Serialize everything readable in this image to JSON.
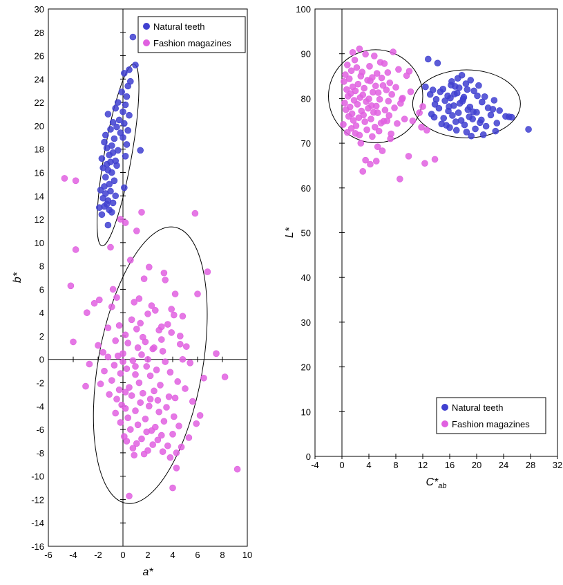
{
  "chart_data": [
    {
      "type": "scatter",
      "title": "",
      "xlabel": "a*",
      "ylabel": "b*",
      "xlim": [
        -6,
        10
      ],
      "ylim": [
        -16,
        30
      ],
      "xticks": [
        -6,
        -4,
        -2,
        0,
        2,
        4,
        6,
        8,
        10
      ],
      "yticks": [
        -16,
        -14,
        -12,
        -10,
        -8,
        -6,
        -4,
        -2,
        0,
        2,
        4,
        6,
        8,
        10,
        12,
        14,
        16,
        18,
        20,
        22,
        24,
        26,
        28,
        30
      ],
      "grid": false,
      "legend": {
        "position": "top-right"
      },
      "ellipses": [
        {
          "series": "Natural teeth",
          "cx": -0.4,
          "cy": 17.5,
          "rx": 1.1,
          "ry": 7.9,
          "angle_deg": 10
        },
        {
          "series": "Fashion magazines",
          "cx": 2.2,
          "cy": -0.5,
          "rx": 4.2,
          "ry": 12.0,
          "angle_deg": 10
        }
      ],
      "series": [
        {
          "name": "Natural teeth",
          "color": "#4040d0",
          "x": [
            0.8,
            0.5,
            1.0,
            0.1,
            0.6,
            0.4,
            -0.1,
            0.3,
            -0.4,
            0.2,
            -0.6,
            0.0,
            -1.2,
            0.5,
            -0.3,
            -0.8,
            0.1,
            -0.5,
            -1.0,
            0.4,
            -0.2,
            -1.4,
            0.0,
            -0.7,
            -1.5,
            0.3,
            -0.9,
            1.4,
            -1.3,
            -0.4,
            -0.8,
            -1.1,
            0.2,
            -1.7,
            -0.6,
            -1.0,
            -1.3,
            -0.5,
            -1.6,
            -1.2,
            -0.9,
            -1.4,
            -0.7,
            -1.1,
            -1.5,
            0.1,
            -1.8,
            -1.0,
            -1.4,
            -0.6,
            -1.6,
            -1.2,
            -0.8,
            -1.3,
            -1.5,
            -1.9,
            -1.1,
            -0.9,
            -1.7,
            -1.2
          ],
          "y": [
            27.6,
            24.8,
            25.2,
            24.5,
            23.8,
            23.4,
            22.9,
            22.5,
            22.0,
            21.8,
            21.5,
            21.2,
            21.0,
            20.9,
            20.5,
            20.3,
            20.2,
            19.9,
            19.7,
            19.6,
            19.4,
            19.2,
            19.0,
            18.9,
            18.6,
            18.4,
            18.3,
            17.9,
            18.1,
            17.9,
            17.7,
            17.5,
            17.4,
            17.2,
            17.0,
            16.9,
            16.7,
            16.6,
            16.4,
            16.2,
            16.0,
            15.6,
            15.3,
            15.0,
            14.8,
            14.7,
            14.5,
            14.4,
            14.2,
            14.0,
            13.8,
            13.6,
            13.4,
            13.3,
            13.1,
            13.0,
            12.8,
            12.6,
            12.4,
            11.5
          ]
        },
        {
          "name": "Fashion magazines",
          "color": "#e060e0",
          "x": [
            -4.7,
            -3.8,
            5.8,
            1.5,
            -0.2,
            0.2,
            -3.8,
            -1.0,
            1.1,
            6.8,
            0.6,
            2.1,
            -4.2,
            3.4,
            -0.8,
            1.7,
            3.3,
            4.2,
            -1.9,
            -0.5,
            2.3,
            -2.3,
            4.8,
            -0.9,
            1.3,
            -2.9,
            0.9,
            2.6,
            4.1,
            0.7,
            -0.3,
            3.6,
            1.1,
            3.9,
            0.2,
            -1.2,
            2.9,
            1.6,
            -0.6,
            4.6,
            0.4,
            -2.0,
            1.8,
            3.1,
            -4.0,
            5.1,
            1.2,
            -1.6,
            2.4,
            0.0,
            3.2,
            -0.4,
            1.5,
            -1.2,
            2.0,
            4.8,
            -2.7,
            0.8,
            3.4,
            -0.7,
            1.9,
            5.4,
            0.3,
            2.7,
            -1.5,
            -0.2,
            3.8,
            1.0,
            6.5,
            8.2,
            -3.0,
            2.2,
            -0.9,
            4.4,
            1.3,
            -1.8,
            0.5,
            3.0,
            -0.3,
            2.5,
            5.0,
            1.6,
            -1.1,
            0.7,
            3.7,
            -0.5,
            2.8,
            4.2,
            1.4,
            -0.1,
            5.6,
            2.1,
            0.2,
            3.5,
            1.0,
            -0.6,
            2.9,
            6.2,
            0.4,
            4.1,
            1.8,
            -0.2,
            3.3,
            5.9,
            1.2,
            2.6,
            0.6,
            4.5,
            1.9,
            2.3,
            4.0,
            0.1,
            3.1,
            1.5,
            0.3,
            2.8,
            5.3,
            1.1,
            3.6,
            2.4,
            0.8,
            4.7,
            2.0,
            3.2,
            1.7,
            4.3,
            0.9,
            3.8,
            4.3,
            4.0,
            0.5,
            9.2,
            7.5,
            2.5,
            0.0,
            1.0,
            3.1,
            2.0,
            6.0,
            1.4,
            3.9,
            0.2,
            2.2,
            4.6
          ],
          "y": [
            15.5,
            15.3,
            12.5,
            12.6,
            12.0,
            11.7,
            9.4,
            9.6,
            11.0,
            7.5,
            8.5,
            7.9,
            6.3,
            6.8,
            6.0,
            6.9,
            7.4,
            5.6,
            5.1,
            5.3,
            4.6,
            4.8,
            3.7,
            4.5,
            5.2,
            4.0,
            4.9,
            4.2,
            3.8,
            3.4,
            2.9,
            3.0,
            2.6,
            2.3,
            2.1,
            2.7,
            2.5,
            1.9,
            1.6,
            2.0,
            1.4,
            1.2,
            1.5,
            1.7,
            1.5,
            1.1,
            1.0,
            0.6,
            0.9,
            0.5,
            0.7,
            0.3,
            0.4,
            0.2,
            0.0,
            0.0,
            -0.4,
            -0.1,
            -0.2,
            -0.5,
            -0.6,
            -0.3,
            -0.8,
            -0.9,
            -1.0,
            -1.2,
            -1.1,
            -1.3,
            -1.6,
            -1.5,
            -2.3,
            -1.4,
            -1.8,
            -1.9,
            -2.0,
            -2.1,
            -2.4,
            -2.2,
            -2.6,
            -2.7,
            -2.5,
            -2.9,
            -3.0,
            -3.1,
            -3.2,
            -3.4,
            -3.5,
            -3.3,
            -3.7,
            -3.9,
            -3.6,
            -4.0,
            -4.2,
            -4.1,
            -4.4,
            -4.6,
            -4.5,
            -4.8,
            -5.0,
            -4.9,
            -5.1,
            -5.4,
            -5.3,
            -5.5,
            -5.6,
            -5.8,
            -6.0,
            -5.7,
            -6.2,
            -6.1,
            -6.4,
            -6.6,
            -6.5,
            -6.8,
            -7.0,
            -6.9,
            -6.7,
            -7.2,
            -7.4,
            -7.3,
            -7.6,
            -7.5,
            -7.8,
            -7.9,
            -8.1,
            -8.0,
            -8.2,
            -8.4,
            -9.3,
            -11.0,
            -11.7,
            -9.4,
            0.5,
            1.0,
            -0.2,
            -0.6,
            2.8,
            3.9,
            5.6,
            3.1,
            4.3,
            -2.8,
            -3.4,
            1.3
          ]
        }
      ]
    },
    {
      "type": "scatter",
      "title": "",
      "xlabel": "C*ab",
      "xlabel_main": "C*",
      "xlabel_sub": "ab",
      "ylabel": "L*",
      "xlim": [
        -4,
        32
      ],
      "ylim": [
        0,
        100
      ],
      "xticks": [
        -4,
        0,
        4,
        8,
        12,
        16,
        20,
        24,
        28,
        32
      ],
      "yticks": [
        0,
        10,
        20,
        30,
        40,
        50,
        60,
        70,
        80,
        90,
        100
      ],
      "grid": false,
      "legend": {
        "position": "bottom-right"
      },
      "ellipses": [
        {
          "series": "Fashion magazines",
          "cx": 5.0,
          "cy": 80.5,
          "rx": 7.0,
          "ry": 10.4,
          "angle_deg": 0
        },
        {
          "series": "Natural teeth",
          "cx": 18.5,
          "cy": 78.8,
          "rx": 8.0,
          "ry": 7.6,
          "angle_deg": 0
        }
      ],
      "series": [
        {
          "name": "Natural teeth",
          "color": "#4040d0",
          "x": [
            12.8,
            14.2,
            12.4,
            17.2,
            13.5,
            15.0,
            16.3,
            17.8,
            19.1,
            14.6,
            13.1,
            16.8,
            18.4,
            15.7,
            20.3,
            17.1,
            14.0,
            19.6,
            16.1,
            21.2,
            18.0,
            15.3,
            13.8,
            20.8,
            17.5,
            22.6,
            16.6,
            19.0,
            14.4,
            18.7,
            21.7,
            15.8,
            17.3,
            13.3,
            20.0,
            23.4,
            16.4,
            18.9,
            22.1,
            15.1,
            19.4,
            17.7,
            24.3,
            16.9,
            20.5,
            14.8,
            18.2,
            21.4,
            23.0,
            16.0,
            19.8,
            17.0,
            25.2,
            18.5,
            22.8,
            15.5,
            21.0,
            19.2,
            27.7,
            24.8,
            20.1,
            17.4,
            16.7,
            18.1,
            15.9,
            19.5,
            20.7,
            13.7,
            17.9,
            22.4,
            16.2,
            18.6
          ],
          "y": [
            88.8,
            87.9,
            82.6,
            84.5,
            81.9,
            82.1,
            83.8,
            85.2,
            84.1,
            81.5,
            80.9,
            82.7,
            83.3,
            80.6,
            82.9,
            81.2,
            79.8,
            81.7,
            80.1,
            80.4,
            79.9,
            79.5,
            78.7,
            79.2,
            78.9,
            79.6,
            78.4,
            78.1,
            77.8,
            77.5,
            77.9,
            77.2,
            76.8,
            76.5,
            76.9,
            77.3,
            76.2,
            75.9,
            76.3,
            75.6,
            75.4,
            75.1,
            76.0,
            74.8,
            74.6,
            74.3,
            74.1,
            73.8,
            74.5,
            73.5,
            73.2,
            72.9,
            75.8,
            72.5,
            72.7,
            74.0,
            71.9,
            71.6,
            73.1,
            75.9,
            80.6,
            82.4,
            81.0,
            80.3,
            78.2,
            77.0,
            75.2,
            75.8,
            79.4,
            77.6,
            83.0,
            82.0
          ]
        },
        {
          "name": "Fashion magazines",
          "color": "#e060e0",
          "x": [
            2.6,
            4.8,
            7.6,
            1.9,
            3.5,
            5.7,
            0.8,
            6.3,
            2.2,
            4.1,
            8.4,
            1.4,
            3.0,
            5.2,
            0.5,
            6.8,
            2.8,
            4.5,
            9.6,
            1.1,
            3.8,
            5.9,
            0.3,
            7.1,
            2.4,
            4.2,
            6.1,
            1.6,
            3.3,
            5.0,
            0.7,
            8.0,
            2.0,
            4.6,
            6.6,
            1.3,
            3.1,
            5.4,
            0.9,
            7.4,
            2.7,
            4.0,
            9.0,
            1.8,
            3.6,
            5.6,
            0.4,
            6.9,
            2.3,
            4.4,
            8.7,
            1.2,
            3.9,
            5.1,
            0.6,
            7.8,
            2.9,
            4.7,
            6.4,
            1.5,
            3.2,
            5.3,
            1.0,
            7.0,
            2.5,
            4.3,
            10.5,
            11.8,
            12.6,
            1.7,
            3.4,
            5.8,
            0.2,
            6.2,
            2.1,
            4.9,
            8.2,
            1.4,
            3.7,
            5.5,
            0.8,
            7.3,
            2.6,
            4.5,
            9.3,
            11.5,
            12.0,
            10.2,
            2.8,
            5.3,
            7.2,
            6.0,
            9.9,
            3.5,
            5.1,
            8.6,
            13.8,
            4.2,
            12.3,
            3.1,
            6.7,
            2.0,
            10.0,
            8.9,
            1.6
          ],
          "y": [
            91.1,
            89.5,
            90.4,
            88.6,
            89.9,
            88.1,
            87.5,
            87.8,
            86.9,
            87.2,
            86.5,
            86.2,
            85.9,
            85.6,
            85.3,
            85.8,
            85.0,
            84.7,
            85.1,
            84.4,
            84.1,
            84.6,
            83.8,
            83.5,
            83.2,
            83.9,
            82.9,
            82.6,
            82.3,
            82.8,
            82.0,
            82.5,
            81.7,
            81.4,
            81.9,
            81.1,
            80.8,
            81.3,
            80.5,
            80.9,
            80.2,
            79.9,
            80.1,
            79.6,
            79.3,
            79.8,
            79.0,
            79.4,
            78.7,
            78.4,
            78.9,
            78.1,
            77.8,
            78.3,
            77.5,
            77.9,
            77.2,
            76.9,
            77.4,
            76.6,
            76.3,
            76.8,
            76.0,
            76.2,
            75.7,
            75.4,
            75.0,
            73.6,
            72.9,
            75.1,
            74.8,
            74.5,
            74.2,
            74.9,
            73.9,
            73.6,
            74.4,
            73.3,
            73.0,
            72.7,
            72.4,
            72.1,
            71.8,
            71.5,
            75.4,
            76.8,
            78.2,
            81.5,
            70.0,
            69.2,
            71.0,
            68.3,
            67.1,
            66.2,
            66.0,
            62.0,
            66.4,
            65.3,
            65.5,
            63.7,
            75.0,
            72.2,
            86.1,
            79.8,
            90.3
          ]
        }
      ]
    }
  ]
}
